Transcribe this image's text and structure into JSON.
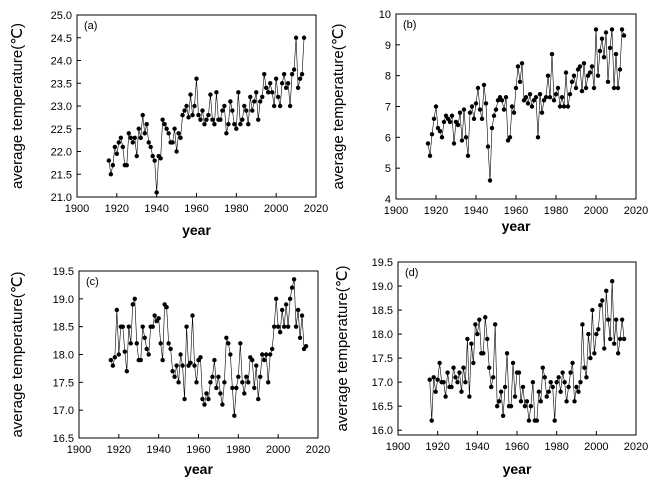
{
  "chart_data": [
    {
      "type": "line",
      "panel_label": "(a)",
      "xlabel": "year",
      "ylabel": "average temperature(℃)",
      "xlim": [
        1900,
        2020
      ],
      "ylim": [
        21.0,
        25.0
      ],
      "xticks": [
        1900,
        1920,
        1940,
        1960,
        1980,
        2000,
        2020
      ],
      "yticks": [
        21.0,
        21.5,
        22.0,
        22.5,
        23.0,
        23.5,
        24.0,
        24.5,
        25.0
      ],
      "ytick_decimals": 1,
      "x": [
        1916,
        1917,
        1918,
        1919,
        1920,
        1921,
        1922,
        1923,
        1924,
        1925,
        1926,
        1927,
        1928,
        1929,
        1930,
        1931,
        1932,
        1933,
        1934,
        1935,
        1936,
        1937,
        1938,
        1939,
        1940,
        1941,
        1942,
        1943,
        1944,
        1945,
        1946,
        1947,
        1948,
        1949,
        1950,
        1951,
        1952,
        1953,
        1954,
        1955,
        1956,
        1957,
        1958,
        1959,
        1960,
        1961,
        1962,
        1963,
        1964,
        1965,
        1966,
        1967,
        1968,
        1969,
        1970,
        1971,
        1972,
        1973,
        1974,
        1975,
        1976,
        1977,
        1978,
        1979,
        1980,
        1981,
        1982,
        1983,
        1984,
        1985,
        1986,
        1987,
        1988,
        1989,
        1990,
        1991,
        1992,
        1993,
        1994,
        1995,
        1996,
        1997,
        1998,
        1999,
        2000,
        2001,
        2002,
        2003,
        2004,
        2005,
        2006,
        2007,
        2008,
        2009,
        2010,
        2011,
        2012,
        2013,
        2014
      ],
      "values": [
        21.8,
        21.5,
        21.7,
        22.1,
        21.95,
        22.2,
        22.3,
        22.1,
        21.7,
        21.7,
        22.4,
        22.3,
        22.2,
        22.3,
        21.9,
        22.5,
        22.3,
        22.8,
        22.4,
        22.6,
        22.2,
        22.1,
        21.9,
        21.8,
        21.1,
        21.9,
        21.85,
        22.7,
        22.6,
        22.5,
        22.4,
        22.2,
        22.2,
        22.5,
        22.0,
        22.4,
        22.3,
        22.8,
        22.9,
        23.0,
        22.75,
        23.25,
        22.8,
        23.0,
        23.6,
        22.8,
        22.7,
        22.9,
        22.6,
        22.7,
        22.8,
        23.25,
        22.7,
        22.6,
        23.3,
        22.7,
        22.7,
        22.9,
        23.0,
        22.4,
        22.6,
        23.1,
        22.9,
        22.6,
        22.5,
        23.3,
        22.6,
        22.7,
        23.0,
        22.9,
        22.6,
        23.2,
        22.9,
        23.1,
        23.3,
        22.7,
        23.1,
        23.2,
        23.7,
        23.4,
        23.3,
        23.5,
        23.3,
        23.0,
        23.6,
        23.2,
        23.0,
        23.5,
        23.7,
        23.4,
        23.5,
        23.0,
        23.7,
        23.8,
        24.5,
        23.4,
        23.6,
        23.7,
        24.5
      ]
    },
    {
      "type": "line",
      "panel_label": "(b)",
      "xlabel": "year",
      "ylabel": "average temperature(℃)",
      "xlim": [
        1900,
        2020
      ],
      "ylim": [
        4,
        10
      ],
      "xticks": [
        1900,
        1920,
        1940,
        1960,
        1980,
        2000,
        2020
      ],
      "yticks": [
        4,
        5,
        6,
        7,
        8,
        9,
        10
      ],
      "ytick_decimals": 0,
      "x": [
        1916,
        1917,
        1918,
        1919,
        1920,
        1921,
        1922,
        1923,
        1924,
        1925,
        1926,
        1927,
        1928,
        1929,
        1930,
        1931,
        1932,
        1933,
        1934,
        1935,
        1936,
        1937,
        1938,
        1939,
        1940,
        1941,
        1942,
        1943,
        1944,
        1945,
        1946,
        1947,
        1948,
        1949,
        1950,
        1951,
        1952,
        1953,
        1954,
        1955,
        1956,
        1957,
        1958,
        1959,
        1960,
        1961,
        1962,
        1963,
        1964,
        1965,
        1966,
        1967,
        1968,
        1969,
        1970,
        1971,
        1972,
        1973,
        1974,
        1975,
        1976,
        1977,
        1978,
        1979,
        1980,
        1981,
        1982,
        1983,
        1984,
        1985,
        1986,
        1987,
        1988,
        1989,
        1990,
        1991,
        1992,
        1993,
        1994,
        1995,
        1996,
        1997,
        1998,
        1999,
        2000,
        2001,
        2002,
        2003,
        2004,
        2005,
        2006,
        2007,
        2008,
        2009,
        2010,
        2011,
        2012,
        2013,
        2014
      ],
      "values": [
        5.8,
        5.4,
        6.1,
        6.6,
        7.0,
        6.3,
        6.2,
        6.0,
        6.5,
        6.7,
        6.6,
        6.5,
        6.7,
        5.8,
        6.5,
        6.4,
        6.8,
        5.9,
        6.9,
        6.0,
        5.4,
        6.8,
        7.0,
        6.6,
        7.1,
        7.6,
        6.9,
        6.6,
        7.7,
        7.1,
        5.7,
        4.6,
        6.3,
        6.7,
        6.9,
        7.2,
        7.3,
        7.2,
        6.9,
        7.3,
        5.9,
        6.0,
        7.0,
        6.8,
        7.6,
        8.3,
        7.8,
        8.4,
        7.2,
        7.3,
        7.1,
        7.4,
        7.0,
        7.2,
        7.3,
        6.0,
        7.4,
        6.8,
        7.2,
        7.3,
        8.0,
        7.3,
        8.7,
        7.2,
        7.4,
        7.6,
        7.0,
        7.3,
        7.0,
        8.1,
        7.0,
        7.4,
        7.8,
        8.0,
        7.6,
        8.2,
        8.3,
        7.5,
        8.4,
        7.6,
        8.0,
        8.1,
        8.3,
        7.6,
        9.5,
        8.0,
        8.8,
        9.2,
        8.6,
        9.4,
        7.8,
        8.9,
        9.5,
        7.6,
        8.7,
        7.6,
        8.2,
        9.5,
        9.3
      ]
    },
    {
      "type": "line",
      "panel_label": "(c)",
      "xlabel": "year",
      "ylabel": "average temperature(℃)",
      "xlim": [
        1900,
        2020
      ],
      "ylim": [
        16.5,
        19.5
      ],
      "xticks": [
        1900,
        1920,
        1940,
        1960,
        1980,
        2000,
        2020
      ],
      "yticks": [
        16.5,
        17.0,
        17.5,
        18.0,
        18.5,
        19.0,
        19.5
      ],
      "ytick_decimals": 1,
      "x": [
        1916,
        1917,
        1918,
        1919,
        1920,
        1921,
        1922,
        1923,
        1924,
        1925,
        1926,
        1927,
        1928,
        1929,
        1930,
        1931,
        1932,
        1933,
        1934,
        1935,
        1936,
        1937,
        1938,
        1939,
        1940,
        1941,
        1942,
        1943,
        1944,
        1945,
        1946,
        1947,
        1948,
        1949,
        1950,
        1951,
        1952,
        1953,
        1954,
        1955,
        1956,
        1957,
        1958,
        1959,
        1960,
        1961,
        1962,
        1963,
        1964,
        1965,
        1966,
        1967,
        1968,
        1969,
        1970,
        1971,
        1972,
        1973,
        1974,
        1975,
        1976,
        1977,
        1978,
        1979,
        1980,
        1981,
        1982,
        1983,
        1984,
        1985,
        1986,
        1987,
        1988,
        1989,
        1990,
        1991,
        1992,
        1993,
        1994,
        1995,
        1996,
        1997,
        1998,
        1999,
        2000,
        2001,
        2002,
        2003,
        2004,
        2005,
        2006,
        2007,
        2008,
        2009,
        2010,
        2011,
        2012,
        2013,
        2014
      ],
      "values": [
        17.9,
        17.8,
        17.95,
        18.8,
        18.0,
        18.5,
        18.5,
        18.05,
        17.7,
        18.5,
        18.2,
        18.9,
        19.0,
        18.2,
        17.9,
        17.9,
        18.5,
        18.3,
        18.1,
        18.0,
        18.5,
        18.5,
        18.7,
        18.6,
        18.65,
        18.2,
        17.9,
        18.9,
        18.85,
        18.2,
        18.1,
        17.7,
        17.6,
        17.8,
        17.5,
        18.0,
        17.8,
        17.2,
        18.5,
        17.8,
        17.85,
        18.7,
        17.8,
        17.5,
        17.9,
        17.95,
        17.2,
        17.1,
        17.3,
        17.2,
        17.5,
        17.6,
        17.9,
        17.4,
        17.6,
        17.3,
        17.1,
        17.5,
        18.3,
        18.2,
        18.0,
        17.4,
        16.9,
        17.4,
        17.6,
        18.2,
        17.5,
        17.3,
        17.6,
        17.5,
        17.95,
        17.9,
        17.4,
        17.8,
        17.2,
        17.6,
        18.0,
        17.9,
        18.0,
        17.5,
        18.0,
        18.1,
        18.5,
        19.0,
        18.5,
        18.4,
        18.8,
        18.5,
        18.9,
        18.5,
        19.0,
        19.2,
        19.35,
        18.5,
        18.8,
        18.3,
        18.7,
        18.1,
        18.15
      ]
    },
    {
      "type": "line",
      "panel_label": "(d)",
      "xlabel": "year",
      "ylabel": "average temperature(℃)",
      "xlim": [
        1900,
        2020
      ],
      "ylim": [
        15.9,
        19.5
      ],
      "xticks": [
        1900,
        1920,
        1940,
        1960,
        1980,
        2000,
        2020
      ],
      "yticks": [
        16.0,
        16.5,
        17.0,
        17.5,
        18.0,
        18.5,
        19.0,
        19.5
      ],
      "ytick_decimals": 1,
      "x": [
        1916,
        1917,
        1918,
        1919,
        1920,
        1921,
        1922,
        1923,
        1924,
        1925,
        1926,
        1927,
        1928,
        1929,
        1930,
        1931,
        1932,
        1933,
        1934,
        1935,
        1936,
        1937,
        1938,
        1939,
        1940,
        1941,
        1942,
        1943,
        1944,
        1945,
        1946,
        1947,
        1948,
        1949,
        1950,
        1951,
        1952,
        1953,
        1954,
        1955,
        1956,
        1957,
        1958,
        1959,
        1960,
        1961,
        1962,
        1963,
        1964,
        1965,
        1966,
        1967,
        1968,
        1969,
        1970,
        1971,
        1972,
        1973,
        1974,
        1975,
        1976,
        1977,
        1978,
        1979,
        1980,
        1981,
        1982,
        1983,
        1984,
        1985,
        1986,
        1987,
        1988,
        1989,
        1990,
        1991,
        1992,
        1993,
        1994,
        1995,
        1996,
        1997,
        1998,
        1999,
        2000,
        2001,
        2002,
        2003,
        2004,
        2005,
        2006,
        2007,
        2008,
        2009,
        2010,
        2011,
        2012,
        2013,
        2014
      ],
      "values": [
        17.05,
        16.2,
        17.1,
        16.8,
        17.05,
        17.4,
        17.0,
        17.0,
        16.7,
        17.2,
        16.9,
        16.9,
        17.3,
        17.1,
        17.0,
        17.2,
        16.8,
        17.3,
        17.0,
        17.9,
        16.7,
        17.8,
        17.4,
        18.2,
        18.0,
        18.3,
        17.6,
        17.6,
        18.35,
        17.9,
        17.3,
        16.9,
        17.1,
        18.2,
        16.5,
        16.6,
        16.8,
        16.3,
        16.9,
        17.6,
        16.5,
        16.5,
        17.4,
        16.7,
        17.2,
        17.2,
        16.6,
        16.9,
        16.5,
        16.6,
        16.2,
        16.5,
        17.0,
        16.2,
        16.2,
        16.8,
        16.6,
        17.3,
        17.1,
        16.7,
        16.8,
        17.0,
        16.9,
        16.2,
        17.0,
        17.1,
        16.8,
        17.2,
        17.0,
        16.6,
        16.9,
        17.2,
        17.4,
        16.6,
        16.9,
        16.8,
        17.0,
        18.2,
        17.3,
        17.1,
        18.0,
        17.5,
        18.5,
        17.6,
        18.0,
        18.1,
        18.6,
        18.7,
        17.7,
        18.9,
        18.3,
        17.9,
        19.1,
        17.8,
        18.3,
        17.6,
        17.9,
        18.3,
        17.9
      ]
    }
  ]
}
